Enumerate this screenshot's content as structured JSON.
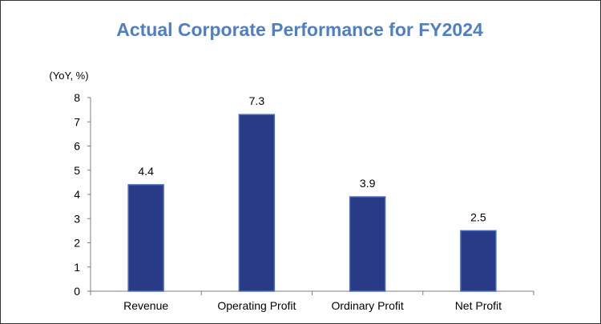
{
  "chart_data": {
    "type": "bar",
    "title": "Actual Corporate Performance for FY2024",
    "ylabel": "(YoY, %)",
    "xlabel": "",
    "categories": [
      "Revenue",
      "Operating Profit",
      "Ordinary Profit",
      "Net Profit"
    ],
    "values": [
      4.4,
      7.3,
      3.9,
      2.5
    ],
    "data_labels": [
      "4.4",
      "7.3",
      "3.9",
      "2.5"
    ],
    "ylim": [
      0,
      8
    ],
    "yticks": [
      0,
      1,
      2,
      3,
      4,
      5,
      6,
      7,
      8
    ],
    "grid": false,
    "legend": "none",
    "colors": {
      "bar_fill": "#293b87",
      "bar_stroke": "#4a6fc0",
      "title": "#4f7fc2",
      "axis": "#7f7f7f"
    }
  }
}
